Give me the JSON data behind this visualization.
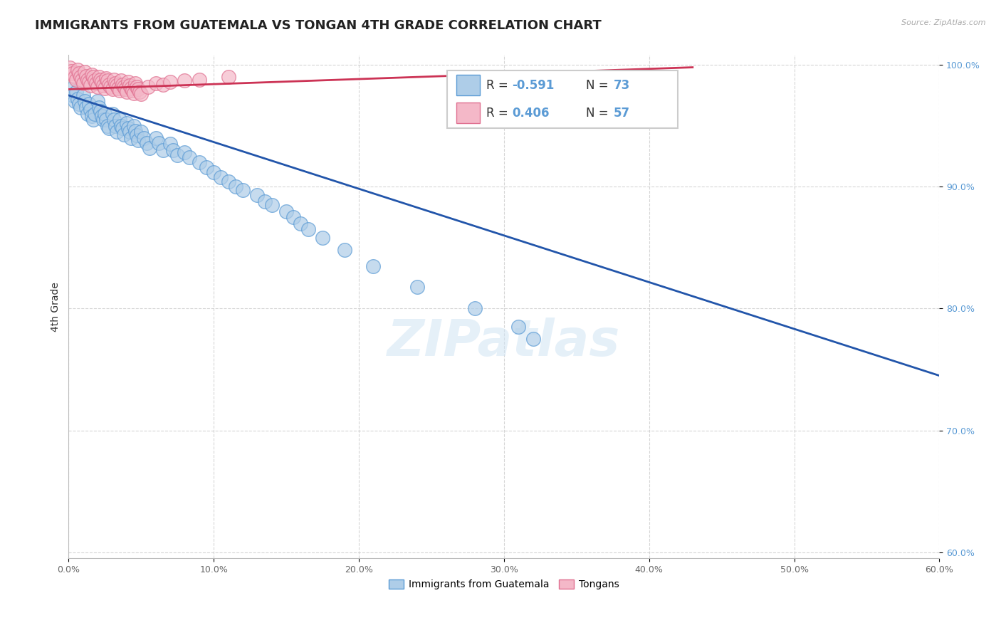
{
  "title": "IMMIGRANTS FROM GUATEMALA VS TONGAN 4TH GRADE CORRELATION CHART",
  "source_text": "Source: ZipAtlas.com",
  "ylabel": "4th Grade",
  "xlim": [
    0.0,
    0.6
  ],
  "ylim": [
    0.595,
    1.008
  ],
  "xticks": [
    0.0,
    0.1,
    0.2,
    0.3,
    0.4,
    0.5,
    0.6
  ],
  "xticklabels": [
    "0.0%",
    "10.0%",
    "20.0%",
    "30.0%",
    "40.0%",
    "50.0%",
    "60.0%"
  ],
  "yticks": [
    0.6,
    0.7,
    0.8,
    0.9,
    1.0
  ],
  "yticklabels": [
    "60.0%",
    "70.0%",
    "80.0%",
    "90.0%",
    "100.0%"
  ],
  "blue_color": "#aecde8",
  "blue_edge_color": "#5b9bd5",
  "pink_color": "#f4b8c8",
  "pink_edge_color": "#e07090",
  "blue_line_color": "#2255aa",
  "pink_line_color": "#cc3355",
  "legend_blue_label": "Immigrants from Guatemala",
  "legend_pink_label": "Tongans",
  "watermark_text": "ZIPatlas",
  "background_color": "#ffffff",
  "grid_color": "#cccccc",
  "title_fontsize": 13,
  "tick_fontsize": 9,
  "legend_fontsize": 11,
  "blue_scatter_x": [
    0.002,
    0.003,
    0.004,
    0.005,
    0.006,
    0.007,
    0.008,
    0.01,
    0.011,
    0.012,
    0.013,
    0.014,
    0.015,
    0.016,
    0.017,
    0.018,
    0.02,
    0.021,
    0.022,
    0.023,
    0.024,
    0.025,
    0.026,
    0.027,
    0.028,
    0.03,
    0.031,
    0.032,
    0.033,
    0.035,
    0.036,
    0.037,
    0.038,
    0.04,
    0.041,
    0.042,
    0.043,
    0.045,
    0.046,
    0.047,
    0.048,
    0.05,
    0.052,
    0.054,
    0.056,
    0.06,
    0.062,
    0.065,
    0.07,
    0.072,
    0.075,
    0.08,
    0.083,
    0.09,
    0.095,
    0.1,
    0.105,
    0.11,
    0.115,
    0.12,
    0.13,
    0.135,
    0.14,
    0.15,
    0.155,
    0.16,
    0.165,
    0.175,
    0.19,
    0.21,
    0.24,
    0.28,
    0.31,
    0.32
  ],
  "blue_scatter_y": [
    0.98,
    0.975,
    0.97,
    0.978,
    0.972,
    0.968,
    0.965,
    0.975,
    0.97,
    0.965,
    0.96,
    0.968,
    0.963,
    0.958,
    0.955,
    0.96,
    0.97,
    0.965,
    0.962,
    0.958,
    0.955,
    0.96,
    0.955,
    0.95,
    0.948,
    0.96,
    0.955,
    0.95,
    0.945,
    0.955,
    0.95,
    0.948,
    0.943,
    0.952,
    0.948,
    0.945,
    0.94,
    0.95,
    0.946,
    0.942,
    0.938,
    0.945,
    0.94,
    0.936,
    0.932,
    0.94,
    0.936,
    0.93,
    0.935,
    0.93,
    0.926,
    0.928,
    0.924,
    0.92,
    0.916,
    0.912,
    0.908,
    0.904,
    0.9,
    0.897,
    0.893,
    0.888,
    0.885,
    0.88,
    0.875,
    0.87,
    0.865,
    0.858,
    0.848,
    0.835,
    0.818,
    0.8,
    0.785,
    0.775
  ],
  "pink_scatter_x": [
    0.001,
    0.002,
    0.003,
    0.004,
    0.005,
    0.006,
    0.007,
    0.008,
    0.009,
    0.01,
    0.011,
    0.012,
    0.013,
    0.014,
    0.015,
    0.016,
    0.017,
    0.018,
    0.019,
    0.02,
    0.021,
    0.022,
    0.023,
    0.024,
    0.025,
    0.026,
    0.027,
    0.028,
    0.029,
    0.03,
    0.031,
    0.032,
    0.033,
    0.034,
    0.035,
    0.036,
    0.037,
    0.038,
    0.039,
    0.04,
    0.041,
    0.042,
    0.043,
    0.044,
    0.045,
    0.046,
    0.047,
    0.048,
    0.049,
    0.05,
    0.055,
    0.06,
    0.065,
    0.07,
    0.08,
    0.09,
    0.11
  ],
  "pink_scatter_y": [
    0.998,
    0.995,
    0.993,
    0.99,
    0.988,
    0.996,
    0.993,
    0.99,
    0.988,
    0.985,
    0.994,
    0.991,
    0.988,
    0.986,
    0.983,
    0.992,
    0.99,
    0.987,
    0.985,
    0.982,
    0.99,
    0.988,
    0.986,
    0.983,
    0.981,
    0.989,
    0.987,
    0.984,
    0.982,
    0.98,
    0.988,
    0.985,
    0.983,
    0.981,
    0.979,
    0.987,
    0.984,
    0.982,
    0.98,
    0.978,
    0.986,
    0.983,
    0.981,
    0.979,
    0.977,
    0.985,
    0.982,
    0.98,
    0.978,
    0.976,
    0.982,
    0.985,
    0.984,
    0.986,
    0.987,
    0.988,
    0.99
  ],
  "blue_line_x": [
    0.0,
    0.6
  ],
  "blue_line_y": [
    0.975,
    0.745
  ],
  "pink_line_x": [
    0.0,
    0.43
  ],
  "pink_line_y": [
    0.98,
    0.998
  ]
}
